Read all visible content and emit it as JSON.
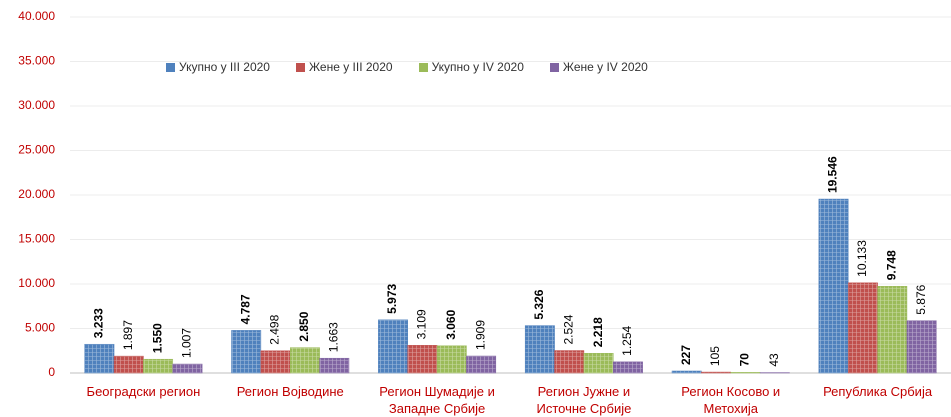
{
  "chart_data": {
    "type": "bar",
    "categories": [
      "Београдски регион",
      "Регион Војводине",
      "Регион Шумадије и Западне Србије",
      "Регион Јужне и Источне Србије",
      "Регион Косово и Метохија",
      "Република Србија"
    ],
    "series": [
      {
        "name": "Укупно у III 2020",
        "color": "#4f81bd",
        "values": [
          3233,
          4787,
          5973,
          5326,
          227,
          19546
        ],
        "value_labels": [
          "3.233",
          "4.787",
          "5.973",
          "5.326",
          "227",
          "19.546"
        ]
      },
      {
        "name": "Жене у III 2020",
        "color": "#c0504d",
        "values": [
          1897,
          2498,
          3109,
          2524,
          105,
          10133
        ],
        "value_labels": [
          "1.897",
          "2.498",
          "3.109",
          "2.524",
          "105",
          "10.133"
        ]
      },
      {
        "name": "Укупно у IV 2020",
        "color": "#9bbb59",
        "values": [
          1550,
          2850,
          3060,
          2218,
          70,
          9748
        ],
        "value_labels": [
          "1.550",
          "2.850",
          "3.060",
          "2.218",
          "70",
          "9.748"
        ]
      },
      {
        "name": "Жене у IV 2020",
        "color": "#8064a2",
        "values": [
          1007,
          1663,
          1909,
          1254,
          43,
          5876
        ],
        "value_labels": [
          "1.007",
          "1.663",
          "1.909",
          "1.254",
          "43",
          "5.876"
        ]
      }
    ],
    "ylim": [
      0,
      40000
    ],
    "yticks": [
      0,
      {
        "value": 5000,
        "label": "5.000"
      },
      {
        "value": 10000,
        "label": "10.000"
      },
      {
        "value": 15000,
        "label": "15.000"
      },
      {
        "value": 20000,
        "label": "20.000"
      },
      {
        "value": 25000,
        "label": "25.000"
      },
      {
        "value": 30000,
        "label": "30.000"
      },
      {
        "value": 35000,
        "label": "35.000"
      },
      {
        "value": 40000,
        "label": "40.000"
      }
    ],
    "grid": true
  }
}
